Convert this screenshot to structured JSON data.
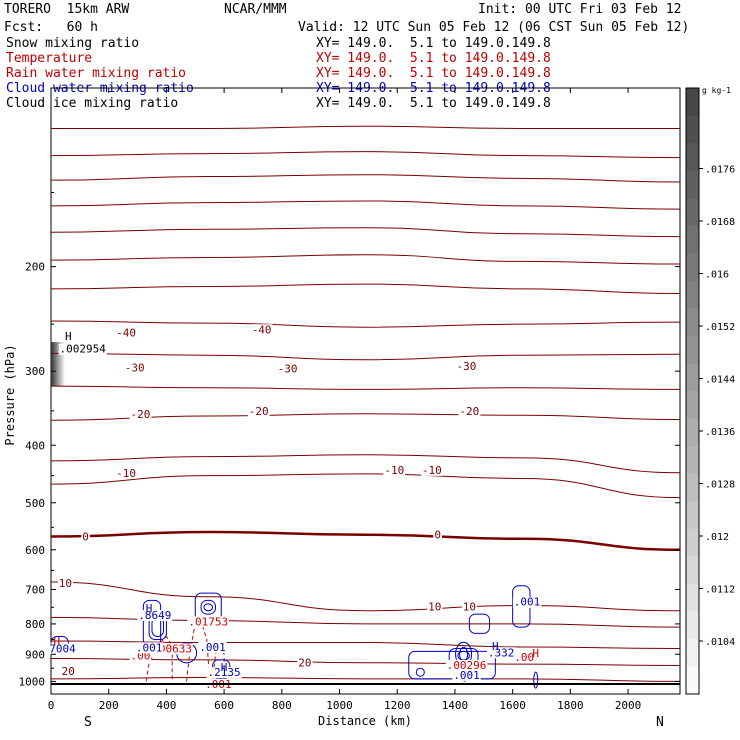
{
  "header": {
    "model": "TORERO  15km ARW",
    "org": "NCAR/MMM",
    "init": "Init: 00 UTC Fri 03 Feb 12",
    "fcst": "Fcst:   60 h",
    "valid": "Valid: 12 UTC Sun 05 Feb 12 (06 CST Sun 05 Feb 12)"
  },
  "fields": [
    {
      "name": "Snow mixing ratio",
      "xy": "XY= 149.0.  5.1 to 149.0.149.8",
      "color": "#000000"
    },
    {
      "name": "Temperature",
      "xy": "XY= 149.0.  5.1 to 149.0.149.8",
      "color": "#c00000"
    },
    {
      "name": "Rain water mixing ratio",
      "xy": "XY= 149.0.  5.1 to 149.0.149.8",
      "color": "#c00000"
    },
    {
      "name": "Cloud water mixing ratio",
      "xy": "XY= 149.0.  5.1 to 149.0.149.8",
      "color": "#0000c0"
    },
    {
      "name": "Cloud ice mixing ratio",
      "xy": "XY= 149.0.  5.1 to 149.0.149.8",
      "color": "#000000"
    }
  ],
  "chart_data": {
    "type": "cross-section contour",
    "xlabel": "Distance (km)",
    "ylabel": "Pressure (hPa)",
    "xlim": [
      0,
      2180
    ],
    "ylim": [
      1050,
      100
    ],
    "y_log": true,
    "x_ticks": [
      0,
      200,
      400,
      600,
      800,
      1000,
      1200,
      1400,
      1600,
      1800,
      2000
    ],
    "y_ticks": [
      200,
      300,
      400,
      500,
      600,
      700,
      800,
      900,
      1000
    ],
    "endpoints": {
      "left": "S",
      "right": "N"
    },
    "colorbar": {
      "unit": "g kg-1",
      "ticks": [
        ".0104",
        ".0112",
        ".012",
        ".0128",
        ".0136",
        ".0144",
        ".0152",
        ".016",
        ".0168",
        ".0176"
      ]
    },
    "temperature_labels": [
      {
        "x": 260,
        "p": 258,
        "text": "-40"
      },
      {
        "x": 730,
        "p": 255,
        "text": "-40"
      },
      {
        "x": 290,
        "p": 296,
        "text": "-30"
      },
      {
        "x": 820,
        "p": 297,
        "text": "-30"
      },
      {
        "x": 1440,
        "p": 294,
        "text": "-30"
      },
      {
        "x": 310,
        "p": 354,
        "text": "-20"
      },
      {
        "x": 720,
        "p": 350,
        "text": "-20"
      },
      {
        "x": 1450,
        "p": 350,
        "text": "-20"
      },
      {
        "x": 260,
        "p": 445,
        "text": "-10"
      },
      {
        "x": 1190,
        "p": 440,
        "text": "-10"
      },
      {
        "x": 1320,
        "p": 440,
        "text": "-10"
      },
      {
        "x": 120,
        "p": 570,
        "text": "0"
      },
      {
        "x": 1340,
        "p": 565,
        "text": "0"
      },
      {
        "x": 50,
        "p": 682,
        "text": "10"
      },
      {
        "x": 1330,
        "p": 748,
        "text": "10"
      },
      {
        "x": 1450,
        "p": 748,
        "text": "10"
      },
      {
        "x": 880,
        "p": 930,
        "text": "20"
      },
      {
        "x": 60,
        "p": 960,
        "text": "20"
      },
      {
        "x": 1430,
        "p": 945,
        "text": "20"
      }
    ],
    "temperature_isotherms": [
      {
        "p": [
          117,
          117,
          116,
          117,
          117
        ]
      },
      {
        "p": [
          130,
          129,
          128,
          130,
          131
        ]
      },
      {
        "p": [
          143,
          141,
          140,
          142,
          144
        ]
      },
      {
        "p": [
          158,
          156,
          155,
          158,
          160
        ]
      },
      {
        "p": [
          175,
          173,
          172,
          176,
          178
        ]
      },
      {
        "p": [
          195,
          193,
          191,
          196,
          198
        ]
      },
      {
        "p": [
          218,
          216,
          214,
          218,
          222
        ]
      },
      {
        "p": [
          247,
          249,
          253,
          250,
          248
        ]
      },
      {
        "p": [
          280,
          282,
          287,
          282,
          281
        ]
      },
      {
        "p": [
          318,
          320,
          322,
          320,
          322
        ]
      },
      {
        "p": [
          363,
          357,
          354,
          356,
          362
        ]
      },
      {
        "p": [
          425,
          418,
          415,
          420,
          445
        ]
      },
      {
        "p": [
          465,
          450,
          447,
          455,
          490
        ]
      },
      {
        "p": [
          570,
          560,
          566,
          575,
          600
        ]
      },
      {
        "p": [
          680,
          720,
          760,
          745,
          760
        ]
      },
      {
        "p": [
          780,
          790,
          800,
          800,
          810
        ]
      },
      {
        "p": [
          855,
          860,
          860,
          875,
          880
        ]
      },
      {
        "p": [
          915,
          920,
          930,
          935,
          940
        ]
      },
      {
        "p": [
          990,
          985,
          990,
          990,
          1000
        ]
      }
    ],
    "rain_labels": [
      {
        "x": 310,
        "p": 905,
        "text": ".00"
      },
      {
        "x": 420,
        "p": 880,
        "text": ".00633"
      },
      {
        "x": 545,
        "p": 792,
        "text": ".01753"
      },
      {
        "x": 580,
        "p": 1010,
        "text": ".001"
      },
      {
        "x": 1440,
        "p": 938,
        "text": ".00296"
      },
      {
        "x": 1640,
        "p": 910,
        "text": ".00"
      }
    ],
    "cloud_water_labels": [
      {
        "x": 360,
        "p": 773,
        "text": ".8649"
      },
      {
        "x": 340,
        "p": 876,
        "text": ".001"
      },
      {
        "x": 560,
        "p": 875,
        "text": ".001"
      },
      {
        "x": 600,
        "p": 965,
        "text": ".2135"
      },
      {
        "x": 1560,
        "p": 893,
        "text": ".332"
      },
      {
        "x": 1440,
        "p": 975,
        "text": ".001"
      },
      {
        "x": 1650,
        "p": 734,
        "text": ".001"
      },
      {
        "x": 40,
        "p": 880,
        "text": "7004"
      }
    ],
    "snow_labels": [
      {
        "x": 110,
        "p": 275,
        "text": ".002954"
      }
    ],
    "highs": [
      {
        "x": 60,
        "p": 262,
        "text": "H",
        "color": "#000000"
      },
      {
        "x": 340,
        "p": 752,
        "text": "H",
        "color": "#0000c0"
      },
      {
        "x": 600,
        "p": 945,
        "text": "H",
        "color": "#0000c0"
      },
      {
        "x": 1540,
        "p": 872,
        "text": "H",
        "color": "#0000c0"
      },
      {
        "x": 1680,
        "p": 895,
        "text": "H",
        "color": "#c00000"
      },
      {
        "x": 20,
        "p": 855,
        "text": "H",
        "color": "#c00000"
      }
    ]
  },
  "colors": {
    "temperature": "#7a0000",
    "rain": "#d00000",
    "cloud_water": "#0000c0",
    "snow_shade": "#555555"
  }
}
